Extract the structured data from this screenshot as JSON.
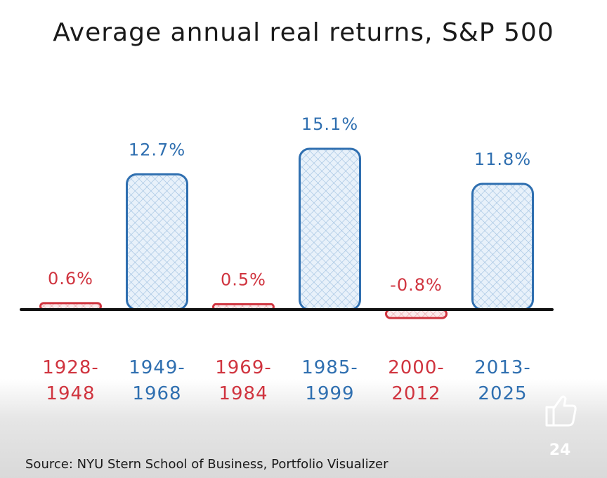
{
  "chart_data": {
    "type": "bar",
    "title": "Average annual real returns, S&P 500",
    "categories": [
      "1928-\n1948",
      "1949-\n1968",
      "1969-\n1984",
      "1985-\n1999",
      "2000-\n2012",
      "2013-\n2025"
    ],
    "values": [
      0.6,
      12.7,
      0.5,
      15.1,
      -0.8,
      11.8
    ],
    "value_labels": [
      "0.6%",
      "12.7%",
      "0.5%",
      "15.1%",
      "-0.8%",
      "11.8%"
    ],
    "colors": [
      "#d0343f",
      "#2f6fb0",
      "#d0343f",
      "#2f6fb0",
      "#d0343f",
      "#2f6fb0"
    ],
    "source": "Source: NYU Stern School of Business, Portfolio Visualizer"
  },
  "overlay": {
    "like_count": 24
  }
}
